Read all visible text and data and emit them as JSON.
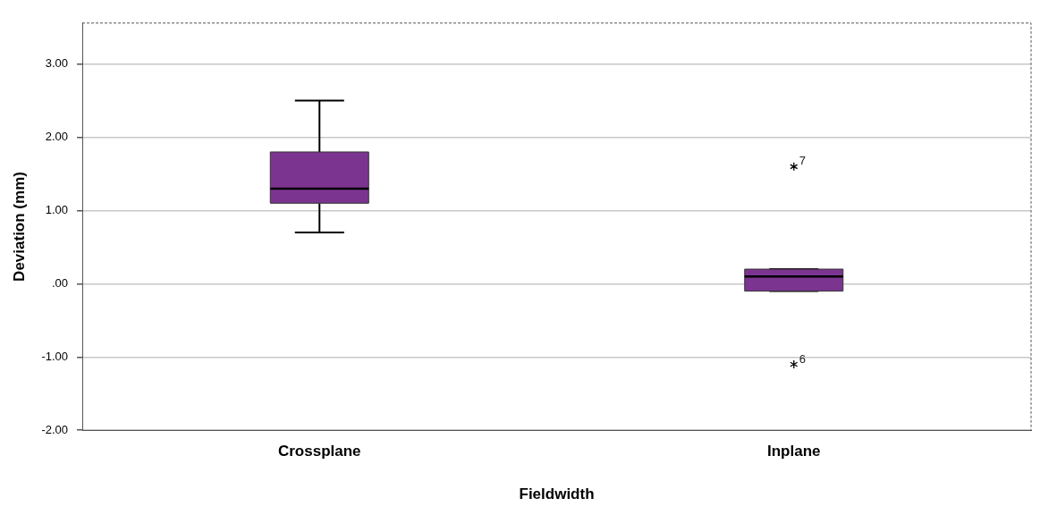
{
  "chart_data": {
    "type": "box",
    "xlabel": "Fieldwidth",
    "ylabel": "Deviation (mm)",
    "categories": [
      "Crossplane",
      "Inplane"
    ],
    "boxes": [
      {
        "low": 0.7,
        "q1": 1.1,
        "median": 1.3,
        "q3": 1.8,
        "high": 2.5
      },
      {
        "low": -0.1,
        "q1": -0.1,
        "median": 0.1,
        "q3": 0.2,
        "high": 0.2,
        "outliers": [
          1.6,
          -1.1
        ]
      }
    ],
    "color": "#7b3590",
    "ylim": [
      -2,
      3.56
    ],
    "yticks": [
      {
        "value": -2,
        "label": "-2.00"
      },
      {
        "value": -1,
        "label": "-1.00"
      },
      {
        "value": 0,
        "label": ".00"
      },
      {
        "value": 1,
        "label": "1.00"
      },
      {
        "value": 2,
        "label": "2.00"
      },
      {
        "value": 3,
        "label": "3.00"
      }
    ],
    "grid": "y",
    "marker": "star",
    "annotations": [
      "7",
      "6"
    ]
  }
}
